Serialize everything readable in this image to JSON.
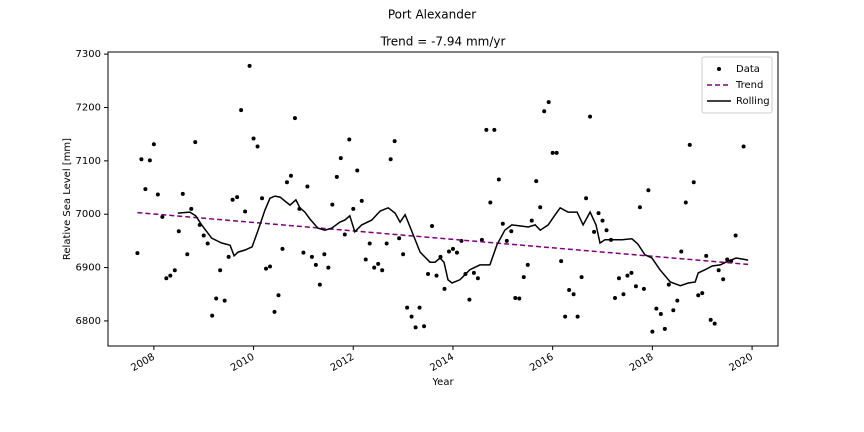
{
  "chart_data": {
    "type": "line",
    "title": "Port Alexander",
    "subtitle": "Trend = -7.94 mm/yr",
    "x_label": "Year",
    "y_label": "Relative Sea Level [mm]",
    "xlim": [
      2007.08,
      2020.52
    ],
    "ylim": [
      6753,
      7304
    ],
    "xticks": [
      2008,
      2010,
      2012,
      2014,
      2016,
      2018,
      2020
    ],
    "yticks": [
      6800,
      6900,
      7000,
      7100,
      7200,
      7300
    ],
    "grid": false,
    "legend": "upper right",
    "series": [
      {
        "name": "Data",
        "color": "#000000",
        "style": "dots",
        "x": [
          2007.67,
          2007.75,
          2007.83,
          2007.92,
          2008.0,
          2008.08,
          2008.17,
          2008.25,
          2008.33,
          2008.42,
          2008.5,
          2008.58,
          2008.67,
          2008.75,
          2008.83,
          2008.92,
          2009.0,
          2009.08,
          2009.17,
          2009.25,
          2009.33,
          2009.42,
          2009.5,
          2009.58,
          2009.67,
          2009.75,
          2009.83,
          2009.92,
          2010.0,
          2010.08,
          2010.17,
          2010.25,
          2010.33,
          2010.42,
          2010.5,
          2010.58,
          2010.67,
          2010.75,
          2010.83,
          2010.92,
          2011.0,
          2011.08,
          2011.17,
          2011.25,
          2011.33,
          2011.42,
          2011.5,
          2011.58,
          2011.67,
          2011.75,
          2011.83,
          2011.92,
          2012.0,
          2012.08,
          2012.17,
          2012.25,
          2012.33,
          2012.42,
          2012.5,
          2012.58,
          2012.67,
          2012.75,
          2012.83,
          2012.92,
          2013.0,
          2013.08,
          2013.17,
          2013.25,
          2013.33,
          2013.42,
          2013.5,
          2013.58,
          2013.67,
          2013.75,
          2013.83,
          2013.92,
          2014.0,
          2014.08,
          2014.17,
          2014.25,
          2014.33,
          2014.42,
          2014.5,
          2014.58,
          2014.67,
          2014.75,
          2014.83,
          2014.92,
          2015.0,
          2015.08,
          2015.17,
          2015.25,
          2015.33,
          2015.42,
          2015.5,
          2015.58,
          2015.67,
          2015.75,
          2015.83,
          2015.92,
          2016.0,
          2016.08,
          2016.17,
          2016.25,
          2016.33,
          2016.42,
          2016.5,
          2016.58,
          2016.67,
          2016.75,
          2016.83,
          2016.92,
          2017.0,
          2017.08,
          2017.17,
          2017.25,
          2017.33,
          2017.42,
          2017.5,
          2017.58,
          2017.67,
          2017.75,
          2017.83,
          2017.92,
          2018.0,
          2018.08,
          2018.17,
          2018.25,
          2018.33,
          2018.42,
          2018.5,
          2018.58,
          2018.67,
          2018.75,
          2018.83,
          2018.92,
          2019.0,
          2019.08,
          2019.17,
          2019.25,
          2019.33,
          2019.42,
          2019.5,
          2019.58,
          2019.67,
          2019.83
        ],
        "values": [
          6927,
          7103,
          7047,
          7101,
          7131,
          7037,
          6995,
          6880,
          6885,
          6895,
          6968,
          7038,
          6925,
          7010,
          7135,
          6980,
          6960,
          6945,
          6810,
          6842,
          6895,
          6838,
          6920,
          7027,
          7032,
          7195,
          7005,
          7278,
          7142,
          7127,
          7030,
          6898,
          6902,
          6817,
          6848,
          6935,
          7060,
          7072,
          7180,
          7010,
          6928,
          7052,
          6920,
          6905,
          6868,
          6925,
          6900,
          7018,
          7070,
          7105,
          6962,
          7140,
          7010,
          7082,
          7025,
          6915,
          6945,
          6900,
          6907,
          6895,
          6945,
          7103,
          7137,
          6955,
          6925,
          6825,
          6808,
          6788,
          6825,
          6790,
          6888,
          6978,
          6885,
          6920,
          6860,
          6930,
          6935,
          6928,
          6950,
          6888,
          6840,
          6890,
          6880,
          6952,
          7158,
          7022,
          7158,
          7065,
          6982,
          6950,
          6968,
          6843,
          6842,
          6882,
          6905,
          6988,
          7062,
          7013,
          7193,
          7210,
          7115,
          7115,
          6912,
          6808,
          6858,
          6850,
          6808,
          6882,
          7030,
          7183,
          6967,
          7002,
          6988,
          6970,
          6952,
          6843,
          6880,
          6850,
          6885,
          6890,
          6865,
          7013,
          6860,
          7045,
          6780,
          6823,
          6813,
          6785,
          6868,
          6820,
          6838,
          6930,
          7022,
          7130,
          7060,
          6848,
          6852,
          6922,
          6802,
          6795,
          6895,
          6878,
          6915,
          6912,
          6960,
          7127
        ]
      },
      {
        "name": "Trend",
        "color": "#800080",
        "style": "dashed",
        "x": [
          2007.67,
          2019.92
        ],
        "values": [
          7003,
          6906
        ]
      },
      {
        "name": "Rolling",
        "color": "#000000",
        "style": "solid",
        "x": [
          2008.48,
          2008.72,
          2008.84,
          2008.96,
          2009.16,
          2009.36,
          2009.53,
          2009.61,
          2009.69,
          2009.83,
          2009.97,
          2010.09,
          2010.23,
          2010.33,
          2010.43,
          2010.53,
          2010.73,
          2010.85,
          2010.93,
          2011.03,
          2011.13,
          2011.29,
          2011.43,
          2011.57,
          2011.73,
          2011.83,
          2011.93,
          2012.03,
          2012.17,
          2012.37,
          2012.54,
          2012.7,
          2012.84,
          2012.94,
          2013.04,
          2013.14,
          2013.34,
          2013.54,
          2013.64,
          2013.74,
          2013.82,
          2013.9,
          2013.98,
          2014.14,
          2014.34,
          2014.54,
          2014.74,
          2014.88,
          2015.04,
          2015.18,
          2015.34,
          2015.51,
          2015.65,
          2015.75,
          2015.91,
          2016.05,
          2016.15,
          2016.31,
          2016.49,
          2016.61,
          2016.75,
          2016.87,
          2016.95,
          2017.05,
          2017.19,
          2017.39,
          2017.59,
          2017.71,
          2017.85,
          2017.99,
          2018.15,
          2018.36,
          2018.56,
          2018.72,
          2018.86,
          2018.92,
          2019.06,
          2019.2,
          2019.36,
          2019.52,
          2019.68,
          2019.8,
          2019.92
        ],
        "values": [
          7002,
          7004,
          6997,
          6980,
          6955,
          6946,
          6942,
          6922,
          6929,
          6933,
          6939,
          6970,
          7008,
          7030,
          7034,
          7032,
          7017,
          7027,
          7012,
          7004,
          6991,
          6974,
          6970,
          6974,
          6985,
          6989,
          6997,
          6967,
          6980,
          6989,
          7006,
          7012,
          7002,
          6985,
          6999,
          6976,
          6929,
          6910,
          6910,
          6918,
          6910,
          6877,
          6871,
          6877,
          6896,
          6905,
          6905,
          6942,
          6970,
          6980,
          6978,
          6976,
          6980,
          6970,
          6980,
          6999,
          7012,
          7004,
          7004,
          6980,
          7004,
          6980,
          6946,
          6952,
          6952,
          6952,
          6954,
          6944,
          6924,
          6918,
          6896,
          6873,
          6866,
          6871,
          6873,
          6890,
          6896,
          6903,
          6905,
          6912,
          6918,
          6916,
          6914
        ]
      }
    ]
  }
}
